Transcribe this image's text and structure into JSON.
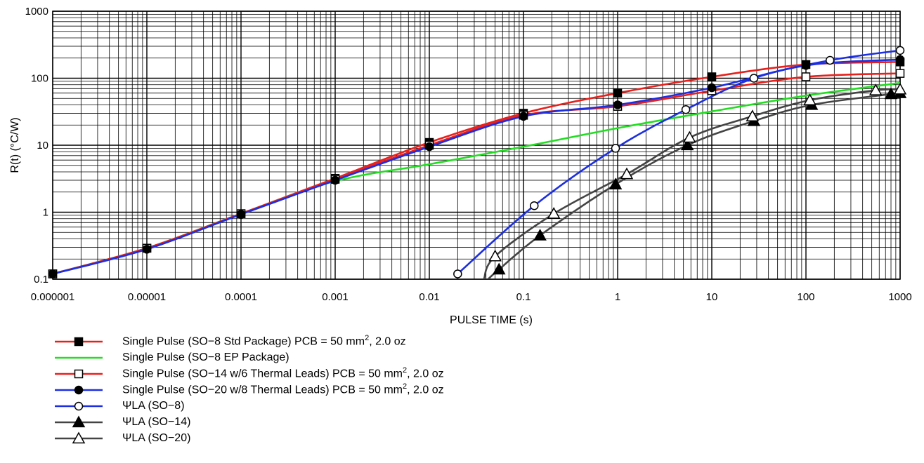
{
  "chart_data": {
    "type": "line",
    "title": "",
    "xlabel": "PULSE TIME (s)",
    "ylabel": "R(t) (°C/W)",
    "x_scale": "log",
    "y_scale": "log",
    "xlim": [
      1e-06,
      1000
    ],
    "ylim": [
      0.1,
      1000
    ],
    "grid": true,
    "legend_position": "bottom-left",
    "x_tick_labels": [
      "0.000001",
      "0.00001",
      "0.0001",
      "0.001",
      "0.01",
      "0.1",
      "1",
      "10",
      "100",
      "1000"
    ],
    "y_tick_labels": [
      "0.1",
      "1",
      "10",
      "100",
      "1000"
    ],
    "series": [
      {
        "name": "Single Pulse (SO-8 Std Package) PCB = 50 mm², 2.0 oz",
        "legend_text": "Single Pulse (SO−8 Std Package) PCB = 50 mm",
        "legend_sup": "2",
        "legend_suffix": ", 2.0 oz",
        "color": "#e8201c",
        "marker": "square-filled",
        "x": [
          1e-06,
          1e-05,
          0.0001,
          0.001,
          0.01,
          0.1,
          1,
          10,
          100,
          1000
        ],
        "y": [
          0.12,
          0.29,
          0.95,
          3.2,
          11,
          30,
          60,
          105,
          160,
          175
        ]
      },
      {
        "name": "Single Pulse (SO-8 EP Package)",
        "legend_text": "Single Pulse (SO−8 EP Package)",
        "legend_sup": "",
        "legend_suffix": "",
        "color": "#22dd22",
        "marker": "none",
        "x": [
          1e-06,
          1e-05,
          0.0001,
          0.001,
          0.01,
          0.1,
          1,
          10,
          100,
          1000
        ],
        "y": [
          0.12,
          0.29,
          0.95,
          2.9,
          5.2,
          9.5,
          18,
          32,
          55,
          85
        ]
      },
      {
        "name": "Single Pulse (SO-14 w/6 Thermal Leads) PCB = 50 mm², 2.0 oz",
        "legend_text": "Single Pulse (SO−14 w/6 Thermal Leads) PCB = 50 mm",
        "legend_sup": "2",
        "legend_suffix": ", 2.0 oz",
        "color": "#e8201c",
        "marker": "square-open",
        "x": [
          1e-06,
          1e-05,
          0.0001,
          0.001,
          0.01,
          0.1,
          1,
          10,
          100,
          1000
        ],
        "y": [
          0.12,
          0.29,
          0.95,
          3.1,
          10,
          28,
          38,
          65,
          105,
          118
        ]
      },
      {
        "name": "Single Pulse (SO-20 w/8 Thermal Leads) PCB = 50 mm², 2.0 oz",
        "legend_text": "Single Pulse (SO−20 w/8 Thermal Leads) PCB = 50 mm",
        "legend_sup": "2",
        "legend_suffix": ", 2.0 oz",
        "color": "#1c2fe0",
        "marker": "circle-filled",
        "x": [
          1e-06,
          1e-05,
          0.0001,
          0.001,
          0.01,
          0.1,
          1,
          10,
          100,
          1000
        ],
        "y": [
          0.12,
          0.28,
          0.93,
          3.0,
          9.5,
          27,
          40,
          72,
          155,
          190
        ]
      },
      {
        "name": "ΨLA (SO-8)",
        "legend_text": "ΨLA (SO−8)",
        "legend_sup": "",
        "legend_suffix": "",
        "color": "#1c2fe0",
        "marker": "circle-open",
        "x": [
          0.02,
          0.13,
          0.95,
          5.3,
          28,
          180,
          1000
        ],
        "y": [
          0.12,
          1.25,
          9,
          34,
          100,
          185,
          260
        ]
      },
      {
        "name": "ΨLA (SO-14)",
        "legend_text": "ΨLA (SO−14)",
        "legend_sup": "",
        "legend_suffix": "",
        "color": "#444444",
        "marker": "triangle-filled",
        "x": [
          0.042,
          0.055,
          0.15,
          0.95,
          5.5,
          28,
          115,
          800,
          1000
        ],
        "y": [
          0.1,
          0.14,
          0.45,
          2.6,
          10,
          23,
          40,
          58,
          60
        ]
      },
      {
        "name": "ΨLA (SO-20)",
        "legend_text": "ΨLA (SO−20)",
        "legend_sup": "",
        "legend_suffix": "",
        "color": "#444444",
        "marker": "triangle-open",
        "x": [
          0.038,
          0.05,
          0.21,
          1.25,
          5.8,
          27,
          110,
          550,
          1000
        ],
        "y": [
          0.1,
          0.22,
          0.95,
          3.7,
          13,
          27,
          47,
          66,
          68
        ]
      }
    ]
  }
}
